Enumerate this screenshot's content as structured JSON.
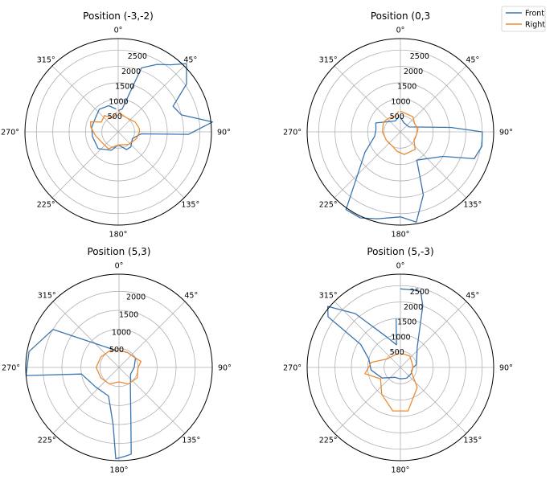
{
  "legend": {
    "entries": [
      "Front",
      "Right"
    ],
    "placement": "top-right"
  },
  "colors": {
    "Front": "#3a75b0",
    "Right": "#ef8a2e",
    "grid": "#b0b0b0",
    "frame": "#000000"
  },
  "chart_data": [
    {
      "type": "polar-line",
      "title": "Position (-3,-2)",
      "rmax": 2850,
      "r_ticks": [
        500,
        1000,
        1500,
        2000,
        2500
      ],
      "theta_ticks": [
        "0°",
        "45°",
        "90°",
        "135°",
        "180°",
        "225°",
        "270°",
        "315°"
      ],
      "series": [
        {
          "name": "Front",
          "points": [
            [
              0,
              650
            ],
            [
              10,
              710
            ],
            [
              20,
              2080
            ],
            [
              30,
              2380
            ],
            [
              38,
              2600
            ],
            [
              45,
              2950
            ],
            [
              55,
              2550
            ],
            [
              65,
              1850
            ],
            [
              75,
              2000
            ],
            [
              84,
              2900
            ],
            [
              92,
              2150
            ],
            [
              95,
              700
            ],
            [
              115,
              480
            ],
            [
              140,
              600
            ],
            [
              155,
              600
            ],
            [
              165,
              480
            ],
            [
              180,
              400
            ],
            [
              200,
              600
            ],
            [
              230,
              800
            ],
            [
              260,
              800
            ],
            [
              280,
              820
            ],
            [
              300,
              810
            ],
            [
              320,
              900
            ],
            [
              340,
              850
            ],
            [
              355,
              700
            ]
          ]
        },
        {
          "name": "Right",
          "points": [
            [
              0,
              650
            ],
            [
              10,
              550
            ],
            [
              30,
              500
            ],
            [
              60,
              600
            ],
            [
              80,
              650
            ],
            [
              90,
              650
            ],
            [
              110,
              600
            ],
            [
              140,
              500
            ],
            [
              180,
              400
            ],
            [
              210,
              600
            ],
            [
              240,
              600
            ],
            [
              260,
              700
            ],
            [
              280,
              850
            ],
            [
              290,
              900
            ],
            [
              300,
              600
            ],
            [
              320,
              650
            ],
            [
              340,
              450
            ],
            [
              355,
              600
            ]
          ]
        }
      ]
    },
    {
      "type": "polar-line",
      "title": "Position (0,3",
      "rmax": 2850,
      "r_ticks": [
        500,
        1000,
        1500,
        2000,
        2500
      ],
      "theta_ticks": [
        "0°",
        "45°",
        "90°",
        "135°",
        "180°",
        "225°",
        "270°",
        "315°"
      ],
      "series": [
        {
          "name": "Front",
          "points": [
            [
              0,
              450
            ],
            [
              20,
              300
            ],
            [
              60,
              300
            ],
            [
              85,
              1550
            ],
            [
              90,
              2500
            ],
            [
              100,
              2530
            ],
            [
              110,
              2400
            ],
            [
              120,
              1500
            ],
            [
              150,
              1000
            ],
            [
              160,
              2050
            ],
            [
              170,
              2800
            ],
            [
              180,
              2600
            ],
            [
              195,
              2750
            ],
            [
              205,
              2900
            ],
            [
              215,
              2900
            ],
            [
              225,
              1850
            ],
            [
              240,
              1250
            ],
            [
              260,
              800
            ],
            [
              275,
              750
            ],
            [
              290,
              800
            ],
            [
              310,
              480
            ],
            [
              335,
              370
            ],
            [
              355,
              470
            ]
          ]
        },
        {
          "name": "Right",
          "points": [
            [
              0,
              630
            ],
            [
              20,
              580
            ],
            [
              40,
              600
            ],
            [
              60,
              500
            ],
            [
              80,
              550
            ],
            [
              100,
              500
            ],
            [
              120,
              480
            ],
            [
              140,
              700
            ],
            [
              170,
              700
            ],
            [
              190,
              600
            ],
            [
              210,
              500
            ],
            [
              240,
              500
            ],
            [
              270,
              550
            ],
            [
              300,
              600
            ],
            [
              320,
              550
            ],
            [
              340,
              500
            ],
            [
              355,
              630
            ]
          ]
        }
      ]
    },
    {
      "type": "polar-line",
      "title": "Position (5,3)",
      "rmax": 2450,
      "r_ticks": [
        500,
        1000,
        1500,
        2000
      ],
      "theta_ticks": [
        "0°",
        "45°",
        "90°",
        "135°",
        "180°",
        "225°",
        "270°",
        "315°"
      ],
      "series": [
        {
          "name": "Front",
          "points": [
            [
              0,
              450
            ],
            [
              30,
              450
            ],
            [
              60,
              500
            ],
            [
              90,
              400
            ],
            [
              120,
              350
            ],
            [
              150,
              600
            ],
            [
              168,
              1500
            ],
            [
              172,
              2300
            ],
            [
              176,
              2340
            ],
            [
              182,
              2400
            ],
            [
              186,
              1500
            ],
            [
              200,
              800
            ],
            [
              230,
              800
            ],
            [
              260,
              1000
            ],
            [
              265,
              2450
            ],
            [
              280,
              2400
            ],
            [
              300,
              2000
            ],
            [
              330,
              600
            ],
            [
              350,
              450
            ]
          ]
        },
        {
          "name": "Right",
          "points": [
            [
              0,
              450
            ],
            [
              30,
              450
            ],
            [
              60,
              500
            ],
            [
              75,
              600
            ],
            [
              90,
              500
            ],
            [
              120,
              550
            ],
            [
              150,
              500
            ],
            [
              180,
              380
            ],
            [
              210,
              500
            ],
            [
              240,
              550
            ],
            [
              270,
              600
            ],
            [
              300,
              550
            ],
            [
              330,
              500
            ],
            [
              355,
              450
            ]
          ]
        }
      ]
    },
    {
      "type": "polar-line",
      "title": "Position (5,-3)",
      "rmax": 2850,
      "r_ticks": [
        500,
        1000,
        1500,
        2000,
        2500
      ],
      "theta_ticks": [
        "0°",
        "45°",
        "90°",
        "135°",
        "180°",
        "225°",
        "270°",
        "315°"
      ],
      "series": [
        {
          "name": "Front",
          "points": [
            [
              0,
              2400
            ],
            [
              10,
              2400
            ],
            [
              15,
              2400
            ],
            [
              20,
              2000
            ],
            [
              40,
              800
            ],
            [
              80,
              500
            ],
            [
              90,
              380
            ],
            [
              120,
              380
            ],
            [
              150,
              380
            ],
            [
              180,
              350
            ],
            [
              210,
              350
            ],
            [
              240,
              650
            ],
            [
              265,
              900
            ],
            [
              285,
              1000
            ],
            [
              300,
              1400
            ],
            [
              305,
              2700
            ],
            [
              310,
              2900
            ],
            [
              320,
              2150
            ],
            [
              335,
              1050
            ],
            [
              350,
              700
            ],
            [
              355,
              1500
            ]
          ]
        },
        {
          "name": "Right",
          "points": [
            [
              0,
              420
            ],
            [
              20,
              420
            ],
            [
              40,
              450
            ],
            [
              70,
              380
            ],
            [
              90,
              380
            ],
            [
              110,
              350
            ],
            [
              140,
              800
            ],
            [
              170,
              1350
            ],
            [
              190,
              1350
            ],
            [
              215,
              1000
            ],
            [
              240,
              700
            ],
            [
              260,
              1100
            ],
            [
              280,
              900
            ],
            [
              300,
              500
            ],
            [
              340,
              420
            ],
            [
              355,
              420
            ]
          ]
        }
      ]
    }
  ]
}
